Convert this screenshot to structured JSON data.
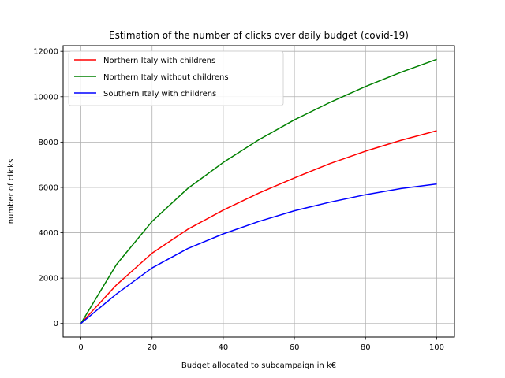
{
  "chart_data": {
    "type": "line",
    "title": "Estimation of the number of clicks over daily budget (covid-19)",
    "xlabel": "Budget allocated to subcampaign in k€",
    "ylabel": "number of clicks",
    "xlim": [
      -5,
      105
    ],
    "ylim": [
      -600,
      12250
    ],
    "xticks": [
      0,
      20,
      40,
      60,
      80,
      100
    ],
    "yticks": [
      0,
      2000,
      4000,
      6000,
      8000,
      10000,
      12000
    ],
    "grid": true,
    "legend_position": "top-left",
    "x": [
      0,
      10,
      20,
      30,
      40,
      50,
      60,
      70,
      80,
      90,
      100
    ],
    "series": [
      {
        "name": "Northern Italy with childrens",
        "color": "#ff0000",
        "values": [
          0,
          1700,
          3100,
          4150,
          5000,
          5750,
          6420,
          7050,
          7600,
          8080,
          8500
        ]
      },
      {
        "name": "Northern Italy without childrens",
        "color": "#008000",
        "values": [
          0,
          2600,
          4500,
          5950,
          7100,
          8100,
          8980,
          9750,
          10450,
          11080,
          11650
        ]
      },
      {
        "name": "Southern Italy with childrens",
        "color": "#0000ff",
        "values": [
          0,
          1300,
          2450,
          3300,
          3950,
          4500,
          4970,
          5350,
          5680,
          5950,
          6150
        ]
      }
    ]
  }
}
